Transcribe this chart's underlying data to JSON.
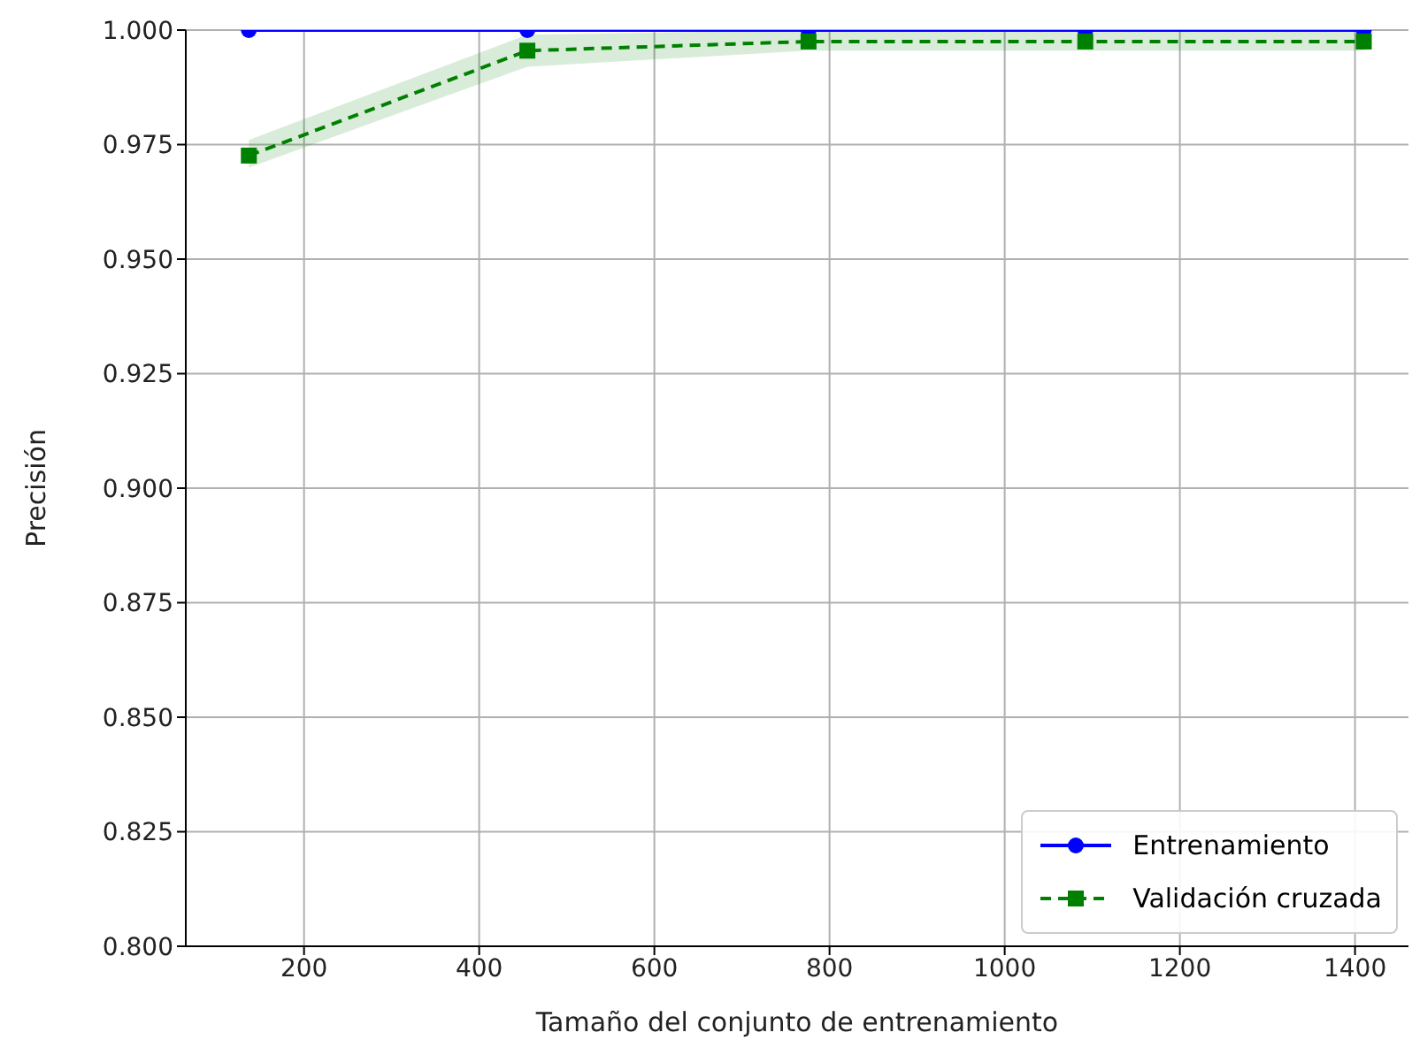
{
  "chart_data": {
    "type": "line",
    "xlabel": "Tamaño del conjunto de entrenamiento",
    "ylabel": "Precisión",
    "x": [
      137,
      455,
      776,
      1092,
      1410
    ],
    "series": [
      {
        "name": "Entrenamiento",
        "color": "#0000ff",
        "values": [
          1.0,
          1.0,
          1.0,
          1.0,
          1.0
        ],
        "marker": "circle",
        "line_style": "solid"
      },
      {
        "name": "Validación cruzada",
        "color": "#008000",
        "values": [
          0.9726,
          0.9955,
          0.9975,
          0.9975,
          0.9975
        ],
        "lower": [
          0.97,
          0.992,
          0.9955,
          0.9955,
          0.9955
        ],
        "upper": [
          0.976,
          0.999,
          1.0,
          1.0,
          1.0
        ],
        "marker": "square",
        "line_style": "dashed"
      }
    ],
    "xlim": [
      65,
      1461
    ],
    "xticks": [
      200,
      400,
      600,
      800,
      1000,
      1200,
      1400
    ],
    "ylim": [
      0.8,
      1.0
    ],
    "yticks": [
      {
        "value": 0.8,
        "label": "0.800"
      },
      {
        "value": 0.825,
        "label": "0.825"
      },
      {
        "value": 0.85,
        "label": "0.850"
      },
      {
        "value": 0.875,
        "label": "0.875"
      },
      {
        "value": 0.9,
        "label": "0.900"
      },
      {
        "value": 0.925,
        "label": "0.925"
      },
      {
        "value": 0.95,
        "label": "0.950"
      },
      {
        "value": 0.975,
        "label": "0.975"
      },
      {
        "value": 1.0,
        "label": "1.000"
      }
    ],
    "grid": true,
    "legend": "bottom right"
  }
}
